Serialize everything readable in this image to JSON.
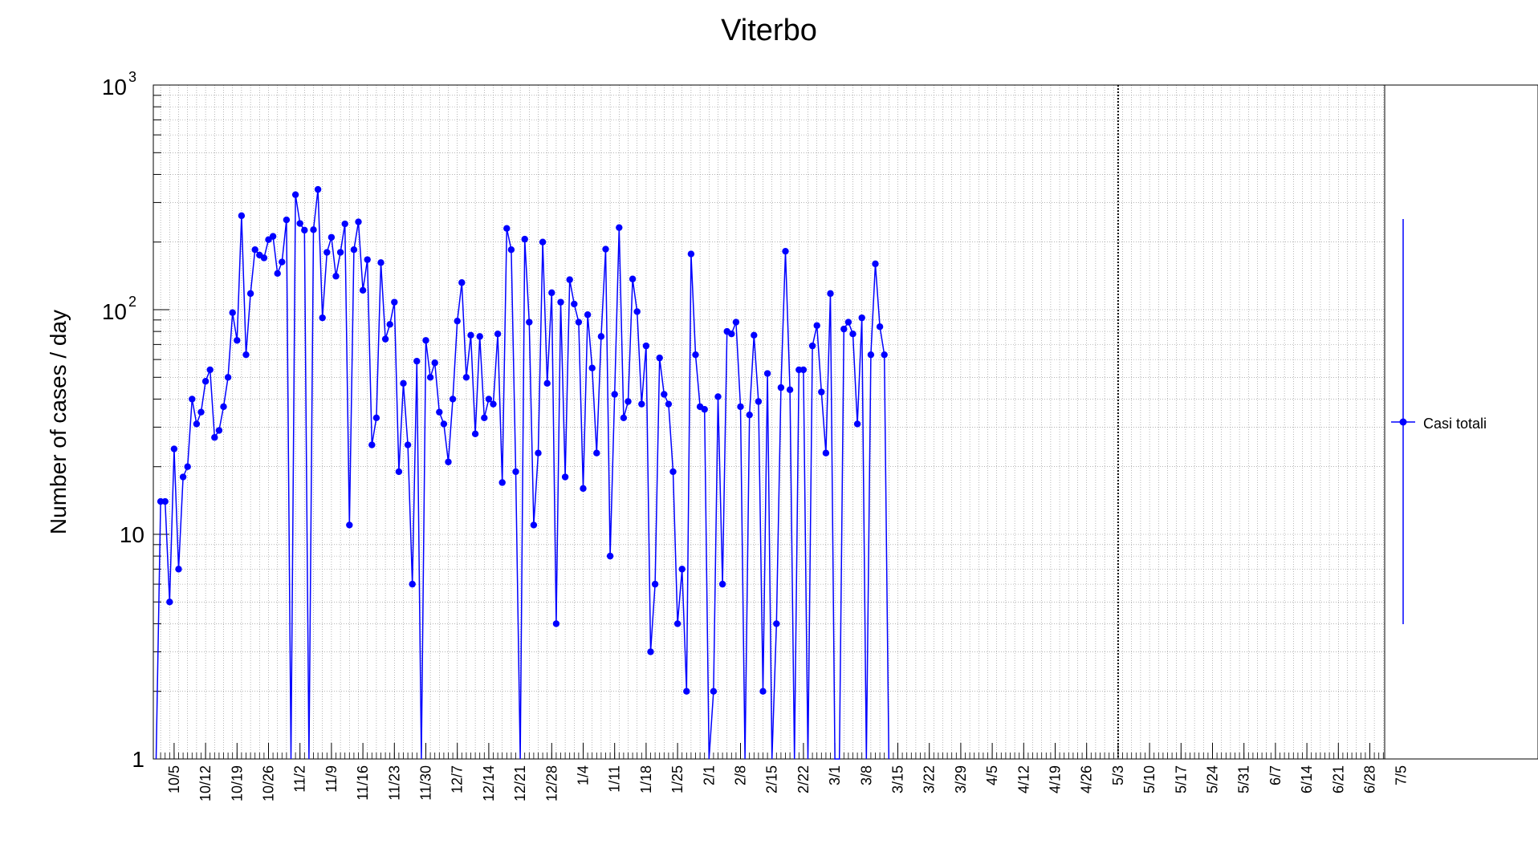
{
  "chart_data": {
    "type": "line",
    "title": "Viterbo",
    "xlabel": "",
    "ylabel": "Number of cases / day",
    "yscale": "log",
    "ylim": [
      1,
      1000
    ],
    "grid": true,
    "legend_position": "right",
    "ytick_labels": [
      {
        "value": 1,
        "base": "1",
        "sup": ""
      },
      {
        "value": 10,
        "base": "10",
        "sup": ""
      },
      {
        "value": 100,
        "base": "10",
        "sup": "2"
      },
      {
        "value": 1000,
        "base": "10",
        "sup": "3"
      }
    ],
    "xtick_labels": [
      "10/5",
      "10/12",
      "10/19",
      "10/26",
      "11/2",
      "11/9",
      "11/16",
      "11/23",
      "11/30",
      "12/7",
      "12/14",
      "12/21",
      "12/28",
      "1/4",
      "1/11",
      "1/18",
      "1/25",
      "2/1",
      "2/8",
      "2/15",
      "2/22",
      "3/1",
      "3/8",
      "3/15",
      "3/22",
      "3/29",
      "4/5",
      "4/12",
      "4/19",
      "4/26",
      "5/3",
      "5/10",
      "5/17",
      "5/24",
      "5/31",
      "6/7",
      "6/14",
      "6/21",
      "6/28",
      "7/5"
    ],
    "marker_line_date": "5/3",
    "series": [
      {
        "name": "Casi totali",
        "color": "#0000ff",
        "start_date": "10/1",
        "values": [
          0,
          14,
          14,
          5,
          24,
          7,
          18,
          20,
          40,
          31,
          35,
          48,
          54,
          27,
          29,
          37,
          50,
          97,
          73,
          262,
          63,
          118,
          185,
          175,
          170,
          205,
          212,
          145,
          163,
          251,
          0,
          325,
          242,
          226,
          0,
          227,
          343,
          92,
          180,
          210,
          141,
          180,
          241,
          11,
          185,
          246,
          122,
          167,
          25,
          33,
          162,
          74,
          86,
          108,
          19,
          47,
          25,
          6,
          59,
          0,
          73,
          50,
          58,
          35,
          31,
          21,
          40,
          89,
          132,
          50,
          77,
          28,
          76,
          33,
          40,
          38,
          78,
          17,
          230,
          185,
          19,
          0,
          206,
          88,
          11,
          23,
          200,
          47,
          119,
          4,
          108,
          18,
          136,
          106,
          88,
          16,
          95,
          55,
          23,
          76,
          186,
          8,
          42,
          232,
          33,
          39,
          137,
          98,
          38,
          69,
          3,
          6,
          61,
          42,
          38,
          19,
          4,
          7,
          2,
          177,
          63,
          37,
          36,
          0,
          2,
          41,
          6,
          80,
          78,
          88,
          37,
          0,
          34,
          77,
          39,
          2,
          52,
          0,
          4,
          45,
          182,
          44,
          0,
          54,
          54,
          0,
          69,
          85,
          43,
          23,
          118,
          0,
          0,
          82,
          88,
          78,
          31,
          92,
          0,
          63,
          160,
          84,
          63,
          0
        ]
      }
    ]
  }
}
